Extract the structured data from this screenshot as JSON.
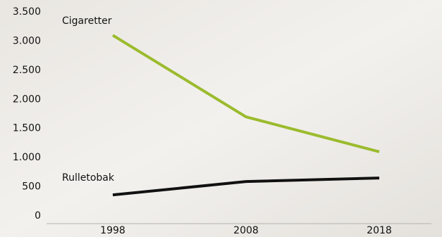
{
  "chart_data": {
    "type": "line",
    "categories": [
      "1998",
      "2008",
      "2018"
    ],
    "series": [
      {
        "name": "Cigaretter",
        "color": "#9bbb2d",
        "values": [
          3100,
          1700,
          1100
        ]
      },
      {
        "name": "Rulletobak",
        "color": "#111111",
        "values": [
          360,
          590,
          650
        ]
      }
    ],
    "ylim": [
      0,
      3500
    ],
    "yticks": [
      0,
      500,
      {
        "value": 1000,
        "label": "1.000"
      },
      {
        "value": 1500,
        "label": "1.500"
      },
      {
        "value": 2000,
        "label": "2.000"
      },
      {
        "value": 2500,
        "label": "2.500"
      },
      {
        "value": 3000,
        "label": "3.000"
      },
      {
        "value": 3500,
        "label": "3.500"
      }
    ],
    "grid": false
  }
}
